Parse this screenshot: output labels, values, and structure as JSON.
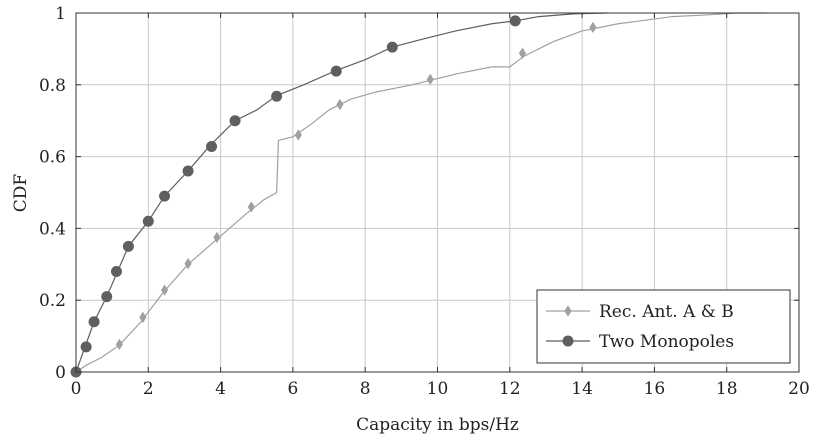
{
  "chart_data": {
    "type": "line",
    "title": "",
    "xlabel": "Capacity in bps/Hz",
    "ylabel": "CDF",
    "xlim": [
      0,
      20
    ],
    "ylim": [
      0,
      1
    ],
    "xticks": [
      "0",
      "2",
      "4",
      "6",
      "8",
      "10",
      "12",
      "14",
      "16",
      "18",
      "20"
    ],
    "yticks": [
      "0",
      "0.2",
      "0.4",
      "0.6",
      "0.8",
      "1"
    ],
    "grid": true,
    "legend_position": "bottom-right",
    "series": [
      {
        "name": "Rec. Ant. A & B",
        "color": "#a0a0a0",
        "marker": "diamond",
        "x": [
          0,
          0.3,
          0.7,
          1.2,
          1.8,
          2.4,
          3.1,
          3.9,
          4.7,
          5.2,
          5.55,
          5.6,
          6.0,
          6.5,
          7.0,
          7.6,
          8.3,
          9.3,
          10.5,
          11.5,
          12.0,
          12.4,
          13.2,
          14.0,
          15.0,
          16.5,
          17.5,
          18.3,
          19.1
        ],
        "y": [
          0,
          0.02,
          0.04,
          0.075,
          0.14,
          0.22,
          0.3,
          0.37,
          0.44,
          0.48,
          0.5,
          0.645,
          0.655,
          0.69,
          0.73,
          0.76,
          0.78,
          0.8,
          0.83,
          0.85,
          0.85,
          0.88,
          0.92,
          0.95,
          0.97,
          0.99,
          0.995,
          1.0,
          1.0
        ],
        "marker_x": [
          0,
          1.2,
          1.85,
          2.45,
          3.1,
          3.9,
          4.85,
          6.15,
          7.3,
          9.8,
          12.35,
          14.3
        ],
        "marker_y": [
          0,
          0.077,
          0.152,
          0.228,
          0.302,
          0.375,
          0.46,
          0.66,
          0.745,
          0.815,
          0.888,
          0.96
        ]
      },
      {
        "name": "Two Monopoles",
        "color": "#5f5f5f",
        "marker": "circle",
        "x": [
          0,
          0.25,
          0.5,
          0.85,
          1.15,
          1.45,
          2.0,
          2.45,
          3.1,
          3.7,
          4.4,
          5.0,
          5.55,
          6.3,
          7.2,
          8.0,
          8.75,
          9.5,
          10.5,
          11.5,
          12.15,
          12.8,
          13.8,
          14.7
        ],
        "y": [
          0,
          0.07,
          0.14,
          0.21,
          0.28,
          0.35,
          0.42,
          0.49,
          0.56,
          0.63,
          0.7,
          0.73,
          0.77,
          0.8,
          0.84,
          0.87,
          0.905,
          0.925,
          0.95,
          0.97,
          0.978,
          0.99,
          0.998,
          1.0
        ],
        "marker_x": [
          0,
          0.28,
          0.5,
          0.85,
          1.12,
          1.45,
          2.0,
          2.45,
          3.1,
          3.75,
          4.4,
          5.55,
          7.2,
          8.75,
          12.15
        ],
        "marker_y": [
          0,
          0.07,
          0.14,
          0.21,
          0.28,
          0.35,
          0.42,
          0.49,
          0.56,
          0.628,
          0.7,
          0.768,
          0.838,
          0.905,
          0.978
        ]
      }
    ]
  }
}
